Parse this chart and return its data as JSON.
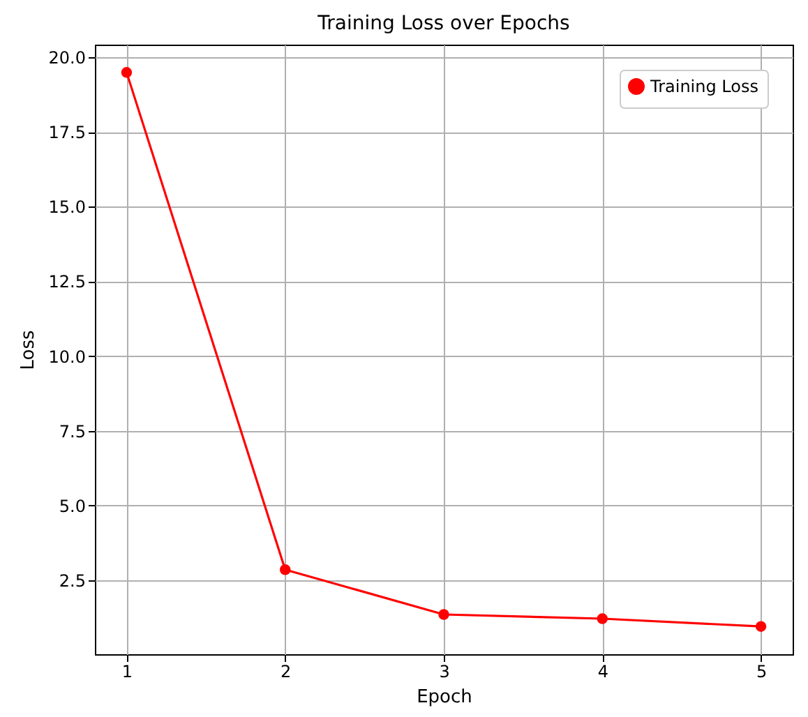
{
  "chart_data": {
    "type": "line",
    "title": "Training Loss over Epochs",
    "xlabel": "Epoch",
    "ylabel": "Loss",
    "x": [
      1,
      2,
      3,
      4,
      5
    ],
    "series": [
      {
        "name": "Training Loss",
        "color": "#ff0000",
        "values": [
          19.49,
          2.86,
          1.36,
          1.22,
          0.96
        ]
      }
    ],
    "xlim": [
      0.8,
      5.2
    ],
    "xticks": [
      1,
      2,
      3,
      4,
      5
    ],
    "ylim": [
      0.03,
      20.42
    ],
    "yticks": [
      {
        "value": 2.5,
        "label": "2.5"
      },
      {
        "value": 5,
        "label": "5.0"
      },
      {
        "value": 7.5,
        "label": "7.5"
      },
      {
        "value": 10,
        "label": "10.0"
      },
      {
        "value": 12.5,
        "label": "12.5"
      },
      {
        "value": 15,
        "label": "15.0"
      },
      {
        "value": 17.5,
        "label": "17.5"
      },
      {
        "value": 20,
        "label": "20.0"
      }
    ],
    "grid": true,
    "legend": "top right",
    "marker": "circle",
    "line_style": "solid"
  }
}
